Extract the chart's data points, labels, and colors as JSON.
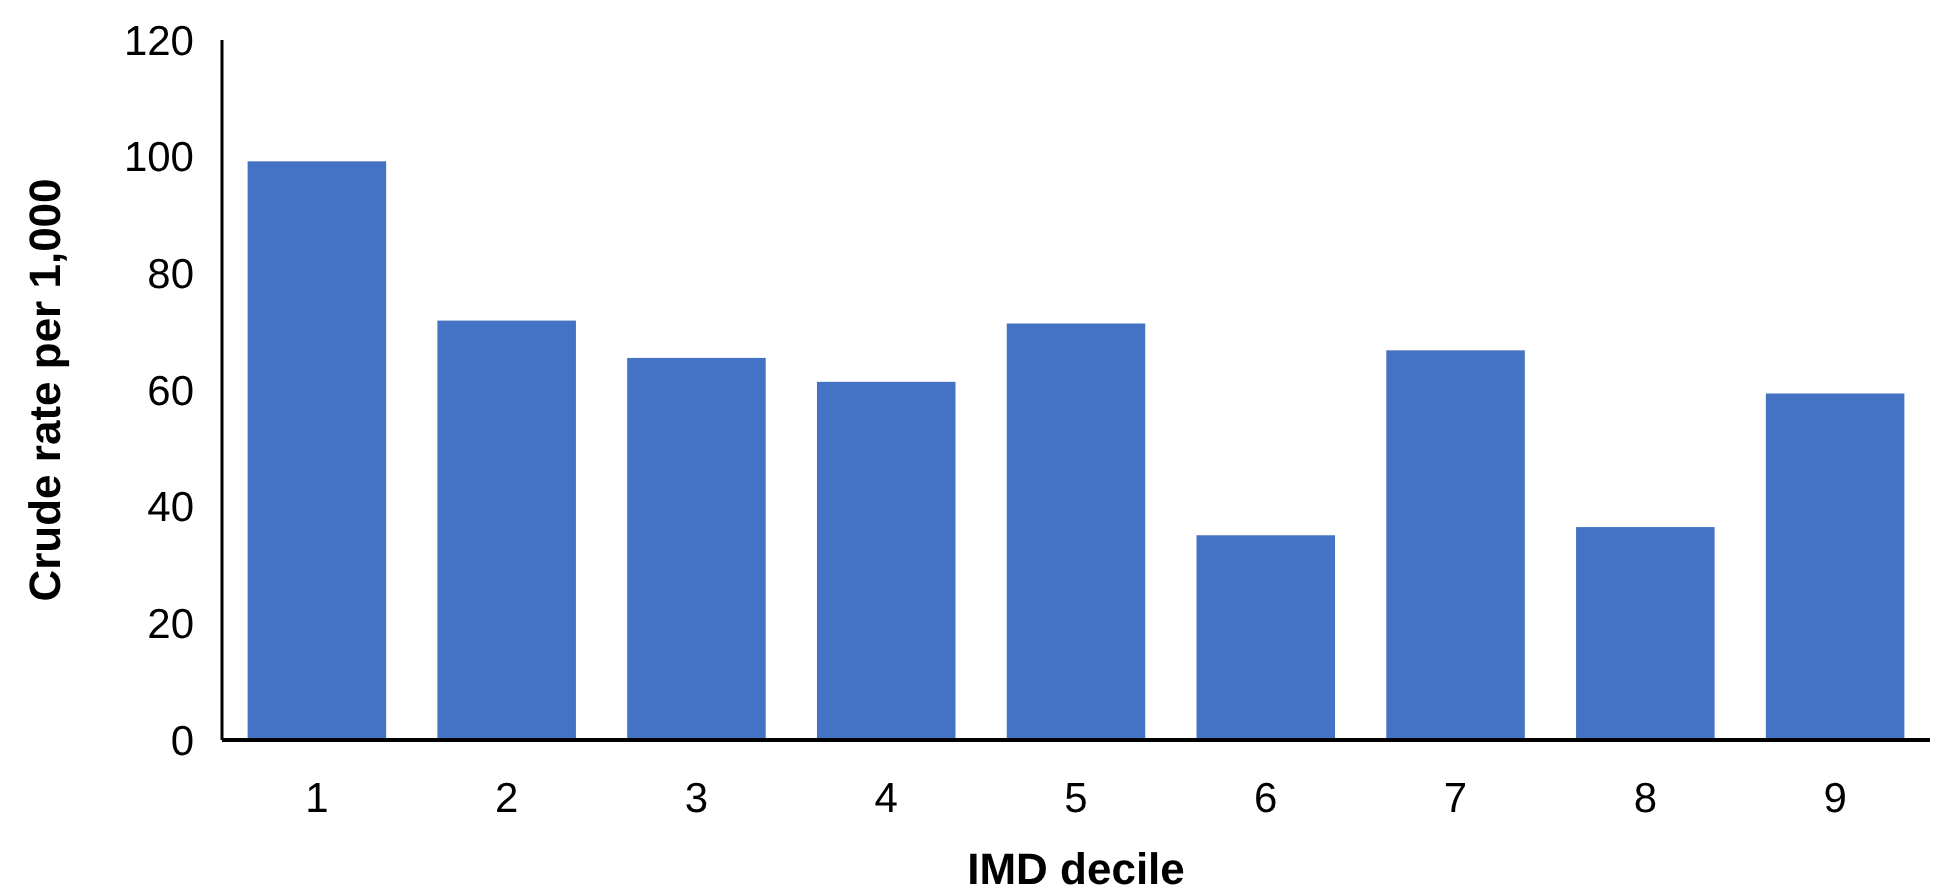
{
  "chart_data": {
    "type": "bar",
    "xlabel": "IMD decile",
    "ylabel": "Crude rate per 1,000",
    "categories": [
      "1",
      "2",
      "3",
      "4",
      "5",
      "6",
      "7",
      "8",
      "9"
    ],
    "values": [
      99.2,
      71.9,
      65.5,
      61.4,
      71.4,
      35.1,
      66.8,
      36.5,
      59.4
    ],
    "color": "#4472c4",
    "ylim": [
      0,
      120
    ],
    "yticks": [
      0,
      20,
      40,
      60,
      80,
      100,
      120
    ],
    "grid": false
  }
}
